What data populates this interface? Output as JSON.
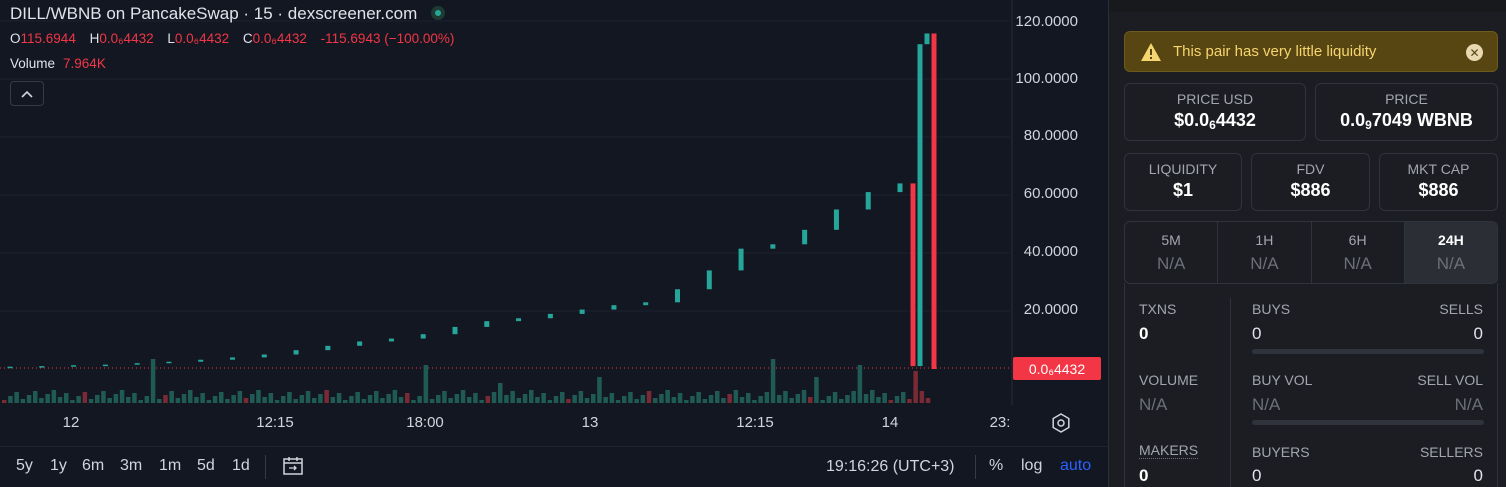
{
  "header": {
    "title": "DILL/WBNB on PancakeSwap · 15 · dexscreener.com",
    "ohlc": [
      {
        "key": "O",
        "value": "115.6944"
      },
      {
        "key": "H",
        "value": "0.0₆4432"
      },
      {
        "key": "L",
        "value": "0.0₆4432"
      },
      {
        "key": "C",
        "value": "0.0₆4432"
      }
    ],
    "change": "-115.6943 (−100.00%)",
    "volume_label": "Volume",
    "volume_value": "7.964K"
  },
  "price_axis": [
    "120.0000",
    "100.0000",
    "80.0000",
    "60.0000",
    "40.0000",
    "20.0000"
  ],
  "last_price": "0.0₆4432",
  "time_axis": [
    "12",
    "12:15",
    "18:00",
    "13",
    "12:15",
    "14",
    "23:"
  ],
  "toolbar": {
    "ranges": [
      "5y",
      "1y",
      "6m",
      "3m",
      "1m",
      "5d",
      "1d"
    ],
    "clock": "19:16:26 (UTC+3)",
    "percent": "%",
    "log": "log",
    "auto": "auto"
  },
  "colors": {
    "up": "#26a69a",
    "down": "#f23645",
    "accent": "#2962ff",
    "warning": "#f5d56f"
  },
  "chart_data": {
    "type": "candlestick",
    "ylim": [
      0,
      125
    ],
    "x_labels": [
      "12",
      "12:15",
      "18:00",
      "13",
      "12:15",
      "14",
      "23:"
    ],
    "candles": [
      {
        "o": 0.5,
        "c": 0.8,
        "h": 0.8,
        "l": 0.5
      },
      {
        "o": 0.8,
        "c": 1.0,
        "h": 1.0,
        "l": 0.8
      },
      {
        "o": 1.0,
        "c": 1.3,
        "h": 1.3,
        "l": 1.0
      },
      {
        "o": 1.3,
        "c": 1.5,
        "h": 1.5,
        "l": 1.3
      },
      {
        "o": 1.5,
        "c": 2.0,
        "h": 2.0,
        "l": 1.5
      },
      {
        "o": 2.0,
        "c": 2.5,
        "h": 2.5,
        "l": 2.0
      },
      {
        "o": 2.5,
        "c": 3.2,
        "h": 3.2,
        "l": 2.5
      },
      {
        "o": 3.2,
        "c": 4.0,
        "h": 4.0,
        "l": 3.2
      },
      {
        "o": 4.0,
        "c": 5.0,
        "h": 5.0,
        "l": 4.0
      },
      {
        "o": 5.0,
        "c": 6.5,
        "h": 6.5,
        "l": 5.0
      },
      {
        "o": 6.5,
        "c": 8.0,
        "h": 8.0,
        "l": 6.5
      },
      {
        "o": 8.0,
        "c": 9.5,
        "h": 9.5,
        "l": 8.0
      },
      {
        "o": 9.5,
        "c": 10.5,
        "h": 10.5,
        "l": 9.5
      },
      {
        "o": 10.5,
        "c": 12.0,
        "h": 12.0,
        "l": 10.5
      },
      {
        "o": 12.0,
        "c": 14.5,
        "h": 14.5,
        "l": 12.0
      },
      {
        "o": 14.5,
        "c": 16.5,
        "h": 16.5,
        "l": 14.5
      },
      {
        "o": 16.5,
        "c": 17.5,
        "h": 17.5,
        "l": 16.5
      },
      {
        "o": 17.5,
        "c": 19.0,
        "h": 19.0,
        "l": 17.5
      },
      {
        "o": 19.0,
        "c": 20.5,
        "h": 20.5,
        "l": 19.0
      },
      {
        "o": 20.5,
        "c": 22.0,
        "h": 22.0,
        "l": 20.5
      },
      {
        "o": 22.0,
        "c": 23.0,
        "h": 23.0,
        "l": 22.0
      },
      {
        "o": 23.0,
        "c": 27.5,
        "h": 27.5,
        "l": 23.0
      },
      {
        "o": 27.5,
        "c": 34.0,
        "h": 34.0,
        "l": 27.5
      },
      {
        "o": 34.0,
        "c": 41.5,
        "h": 41.5,
        "l": 34.0
      },
      {
        "o": 41.5,
        "c": 43.0,
        "h": 43.0,
        "l": 41.5
      },
      {
        "o": 43.0,
        "c": 48.0,
        "h": 48.0,
        "l": 43.0
      },
      {
        "o": 48.0,
        "c": 55.0,
        "h": 55.0,
        "l": 48.0
      },
      {
        "o": 55.0,
        "c": 61.0,
        "h": 61.0,
        "l": 55.0
      },
      {
        "o": 61.0,
        "c": 64.0,
        "h": 64.0,
        "l": 61.0
      },
      {
        "o": 64.0,
        "c": 1.0,
        "h": 64.0,
        "l": 1.0
      },
      {
        "o": 1.0,
        "c": 112.0,
        "h": 112.0,
        "l": 1.0
      },
      {
        "o": 112.0,
        "c": 115.7,
        "h": 115.7,
        "l": 112.0
      },
      {
        "o": 115.7,
        "c": 0.0,
        "h": 115.7,
        "l": 0.0
      }
    ]
  },
  "warning": {
    "text": "This pair has very little liquidity"
  },
  "price_usd": {
    "label": "PRICE USD",
    "prefix": "$0.0",
    "sub": "6",
    "suffix": "4432"
  },
  "price_native": {
    "label": "PRICE",
    "prefix": "0.0",
    "sub": "9",
    "suffix": "7049 WBNB"
  },
  "stats": [
    {
      "label": "LIQUIDITY",
      "value": "$1"
    },
    {
      "label": "FDV",
      "value": "$886"
    },
    {
      "label": "MKT CAP",
      "value": "$886"
    }
  ],
  "tabs": [
    {
      "label": "5M",
      "value": "N/A"
    },
    {
      "label": "1H",
      "value": "N/A"
    },
    {
      "label": "6H",
      "value": "N/A"
    },
    {
      "label": "24H",
      "value": "N/A"
    }
  ],
  "metrics": {
    "txns": {
      "label": "TXNS",
      "value": "0"
    },
    "buys": {
      "label": "BUYS",
      "value": "0"
    },
    "sells": {
      "label": "SELLS",
      "value": "0"
    },
    "volume": {
      "label": "VOLUME",
      "value": "N/A"
    },
    "buy_vol": {
      "label": "BUY VOL",
      "value": "N/A"
    },
    "sell_vol": {
      "label": "SELL VOL",
      "value": "N/A"
    },
    "makers": {
      "label": "MAKERS",
      "value": "0"
    },
    "buyers": {
      "label": "BUYERS",
      "value": "0"
    },
    "sellers": {
      "label": "SELLERS",
      "value": "0"
    }
  }
}
